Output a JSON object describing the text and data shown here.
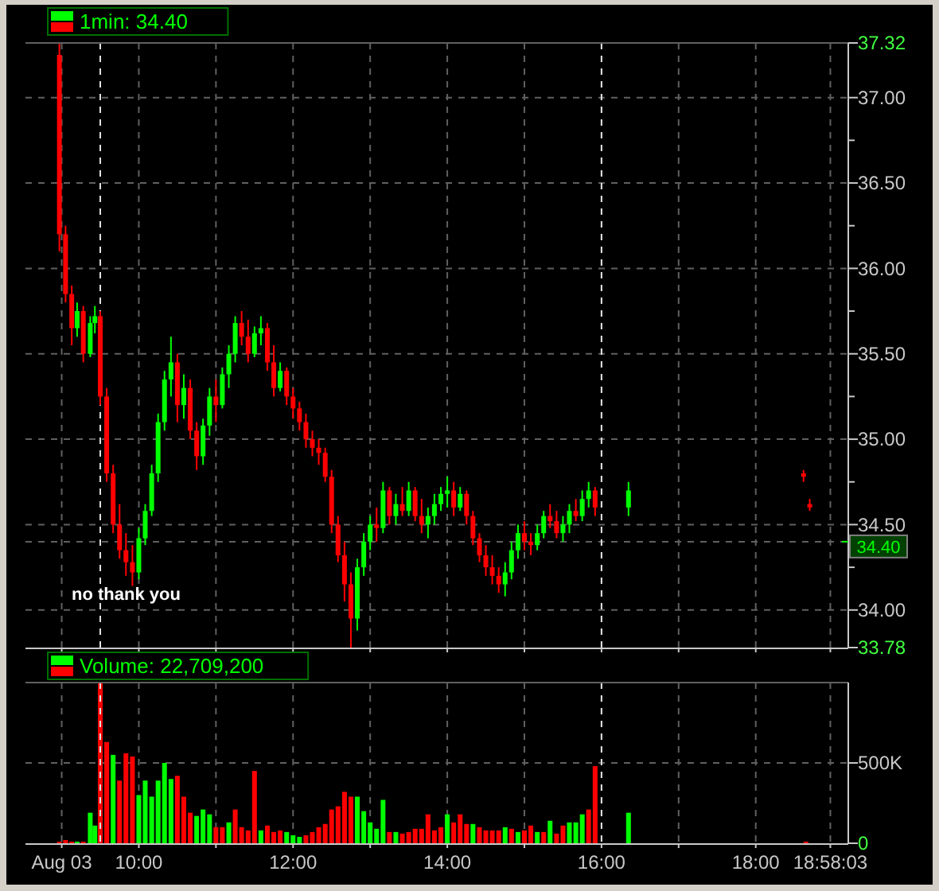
{
  "chart_data": [
    {
      "type": "candlestick",
      "title": "1min: 34.40",
      "annotations": [
        "no thank you"
      ],
      "grid": true,
      "tick_labels": "y",
      "xlim": [
        8.53,
        19.2
      ],
      "xticks": [
        {
          "value": 9,
          "label": null
        },
        {
          "value": 10,
          "label": null
        },
        {
          "value": 11,
          "label": null
        },
        {
          "value": 12,
          "label": null
        },
        {
          "value": 13,
          "label": null
        },
        {
          "value": 14,
          "label": null
        },
        {
          "value": 15,
          "label": null
        },
        {
          "value": 16,
          "label": null
        },
        {
          "value": 17,
          "label": null
        },
        {
          "value": 18,
          "label": null
        },
        {
          "value": 18.9675,
          "label": null
        }
      ],
      "ylim": [
        33.78,
        37.32
      ],
      "yticks": [
        33.78,
        {
          "value": 34,
          "label": "34.00"
        },
        {
          "value": 34.25,
          "label": null
        },
        {
          "value": 34.4,
          "label": "34.40"
        },
        {
          "value": 34.5,
          "label": "34.50"
        },
        {
          "value": 34.75,
          "label": null
        },
        {
          "value": 35,
          "label": "35.00"
        },
        {
          "value": 35.25,
          "label": null
        },
        {
          "value": 35.5,
          "label": "35.50"
        },
        {
          "value": 35.75,
          "label": null
        },
        {
          "value": 36,
          "label": "36.00"
        },
        {
          "value": 36.25,
          "label": null
        },
        {
          "value": 36.5,
          "label": "36.50"
        },
        {
          "value": 36.75,
          "label": null
        },
        {
          "value": 37,
          "label": "37.00"
        },
        37.32
      ],
      "ref_lines": [
        {
          "axis": "x",
          "value": 9.5,
          "line_style": "dashed",
          "color": "#e0e0e0"
        },
        {
          "axis": "x",
          "value": 16,
          "line_style": "dashed",
          "color": "#e0e0e0"
        }
      ],
      "x": [
        8.97,
        9.05,
        9.13,
        9.2,
        9.28,
        9.37,
        9.43,
        9.5,
        9.583,
        9.667,
        9.75,
        9.833,
        9.917,
        10,
        10.083,
        10.167,
        10.25,
        10.333,
        10.417,
        10.5,
        10.583,
        10.667,
        10.75,
        10.833,
        10.917,
        11,
        11.083,
        11.167,
        11.25,
        11.333,
        11.417,
        11.5,
        11.583,
        11.667,
        11.75,
        11.833,
        11.917,
        12,
        12.083,
        12.167,
        12.25,
        12.333,
        12.417,
        12.5,
        12.583,
        12.667,
        12.75,
        12.833,
        12.917,
        13,
        13.083,
        13.167,
        13.25,
        13.333,
        13.417,
        13.5,
        13.583,
        13.667,
        13.75,
        13.833,
        13.917,
        14,
        14.083,
        14.167,
        14.25,
        14.333,
        14.417,
        14.5,
        14.583,
        14.667,
        14.75,
        14.833,
        14.917,
        15,
        15.083,
        15.167,
        15.25,
        15.333,
        15.417,
        15.5,
        15.583,
        15.667,
        15.75,
        15.833,
        15.917,
        16.35,
        18.62,
        18.7
      ],
      "ohlc": [
        [
          37.25,
          37.32,
          36.1,
          36.2
        ],
        [
          36.2,
          36.25,
          35.8,
          35.85
        ],
        [
          35.85,
          35.9,
          35.55,
          35.65
        ],
        [
          35.65,
          35.8,
          35.6,
          35.75
        ],
        [
          35.75,
          35.78,
          35.45,
          35.5
        ],
        [
          35.5,
          35.72,
          35.48,
          35.68
        ],
        [
          35.68,
          35.78,
          35.62,
          35.72
        ],
        [
          35.72,
          35.75,
          35.2,
          35.25
        ],
        [
          35.25,
          35.3,
          34.75,
          34.8
        ],
        [
          34.8,
          34.85,
          34.45,
          34.5
        ],
        [
          34.5,
          34.62,
          34.3,
          34.35
        ],
        [
          34.35,
          34.45,
          34.2,
          34.28
        ],
        [
          34.28,
          34.38,
          34.14,
          34.22
        ],
        [
          34.22,
          34.48,
          34.18,
          34.42
        ],
        [
          34.42,
          34.62,
          34.38,
          34.58
        ],
        [
          34.58,
          34.85,
          34.55,
          34.8
        ],
        [
          34.8,
          35.15,
          34.75,
          35.1
        ],
        [
          35.1,
          35.4,
          35.05,
          35.35
        ],
        [
          35.35,
          35.6,
          35.25,
          35.45
        ],
        [
          35.45,
          35.5,
          35.1,
          35.2
        ],
        [
          35.2,
          35.38,
          35.12,
          35.3
        ],
        [
          35.3,
          35.35,
          35,
          35.05
        ],
        [
          35.05,
          35.1,
          34.82,
          34.9
        ],
        [
          34.9,
          35.12,
          34.85,
          35.08
        ],
        [
          35.08,
          35.3,
          35.02,
          35.25
        ],
        [
          35.25,
          35.35,
          35.1,
          35.2
        ],
        [
          35.2,
          35.42,
          35.18,
          35.38
        ],
        [
          35.38,
          35.55,
          35.3,
          35.5
        ],
        [
          35.5,
          35.72,
          35.45,
          35.68
        ],
        [
          35.68,
          35.75,
          35.55,
          35.6
        ],
        [
          35.6,
          35.7,
          35.45,
          35.5
        ],
        [
          35.5,
          35.66,
          35.48,
          35.62
        ],
        [
          35.62,
          35.72,
          35.55,
          35.65
        ],
        [
          35.65,
          35.68,
          35.4,
          35.45
        ],
        [
          35.45,
          35.55,
          35.25,
          35.3
        ],
        [
          35.3,
          35.45,
          35.28,
          35.4
        ],
        [
          35.4,
          35.42,
          35.2,
          35.25
        ],
        [
          35.25,
          35.3,
          35.12,
          35.18
        ],
        [
          35.18,
          35.22,
          35.05,
          35.1
        ],
        [
          35.1,
          35.15,
          34.95,
          35
        ],
        [
          35,
          35.05,
          34.9,
          34.95
        ],
        [
          34.95,
          35,
          34.85,
          34.92
        ],
        [
          34.92,
          34.95,
          34.75,
          34.78
        ],
        [
          34.78,
          34.82,
          34.45,
          34.5
        ],
        [
          34.5,
          34.55,
          34.28,
          34.32
        ],
        [
          34.32,
          34.4,
          34.05,
          34.15
        ],
        [
          34.15,
          34.22,
          33.78,
          33.95
        ],
        [
          33.95,
          34.3,
          33.88,
          34.25
        ],
        [
          34.25,
          34.45,
          34.2,
          34.4
        ],
        [
          34.4,
          34.55,
          34.35,
          34.5
        ],
        [
          34.5,
          34.6,
          34.4,
          34.48
        ],
        [
          34.48,
          34.75,
          34.45,
          34.7
        ],
        [
          34.7,
          34.72,
          34.5,
          34.55
        ],
        [
          34.55,
          34.68,
          34.5,
          34.62
        ],
        [
          34.62,
          34.72,
          34.55,
          34.58
        ],
        [
          34.58,
          34.75,
          34.55,
          34.7
        ],
        [
          34.7,
          34.72,
          34.52,
          34.55
        ],
        [
          34.55,
          34.65,
          34.45,
          34.5
        ],
        [
          34.5,
          34.6,
          34.42,
          34.55
        ],
        [
          34.55,
          34.68,
          34.5,
          34.62
        ],
        [
          34.62,
          34.72,
          34.58,
          34.68
        ],
        [
          34.68,
          34.78,
          34.6,
          34.7
        ],
        [
          34.7,
          34.75,
          34.55,
          34.6
        ],
        [
          34.6,
          34.72,
          34.58,
          34.68
        ],
        [
          34.68,
          34.7,
          34.5,
          34.55
        ],
        [
          34.55,
          34.58,
          34.38,
          34.42
        ],
        [
          34.42,
          34.45,
          34.28,
          34.32
        ],
        [
          34.32,
          34.38,
          34.2,
          34.25
        ],
        [
          34.25,
          34.32,
          34.15,
          34.2
        ],
        [
          34.2,
          34.25,
          34.1,
          34.15
        ],
        [
          34.15,
          34.28,
          34.08,
          34.22
        ],
        [
          34.22,
          34.4,
          34.18,
          34.35
        ],
        [
          34.35,
          34.5,
          34.3,
          34.45
        ],
        [
          34.45,
          34.52,
          34.35,
          34.4
        ],
        [
          34.4,
          34.45,
          34.32,
          34.38
        ],
        [
          34.38,
          34.5,
          34.35,
          34.45
        ],
        [
          34.45,
          34.58,
          34.42,
          34.55
        ],
        [
          34.55,
          34.62,
          34.48,
          34.52
        ],
        [
          34.52,
          34.58,
          34.42,
          34.45
        ],
        [
          34.45,
          34.55,
          34.4,
          34.5
        ],
        [
          34.5,
          34.62,
          34.45,
          34.58
        ],
        [
          34.58,
          34.65,
          34.52,
          34.55
        ],
        [
          34.55,
          34.7,
          34.52,
          34.65
        ],
        [
          34.65,
          34.75,
          34.6,
          34.7
        ],
        [
          34.7,
          34.72,
          34.55,
          34.6
        ],
        [
          34.6,
          34.75,
          34.55,
          34.7
        ],
        [
          34.8,
          34.82,
          34.75,
          34.78
        ],
        [
          34.62,
          34.65,
          34.58,
          34.6
        ]
      ]
    },
    {
      "type": "bar",
      "title": "Volume: 22,709,200",
      "grid": true,
      "xlim": [
        8.53,
        19.2
      ],
      "xticks": [
        {
          "value": 9,
          "label": "Aug 03"
        },
        {
          "value": 10,
          "label": "10:00"
        },
        {
          "value": 11,
          "label": null
        },
        {
          "value": 12,
          "label": "12:00"
        },
        {
          "value": 13,
          "label": null
        },
        {
          "value": 14,
          "label": "14:00"
        },
        {
          "value": 15,
          "label": null
        },
        {
          "value": 16,
          "label": "16:00"
        },
        {
          "value": 17,
          "label": null
        },
        {
          "value": 18,
          "label": "18:00"
        },
        {
          "value": 18.9675,
          "label": "18:58:03"
        }
      ],
      "ylim": [
        0,
        1000000
      ],
      "yticks": [
        0,
        {
          "value": 500000,
          "label": "500K"
        }
      ],
      "ref_lines": [
        {
          "axis": "x",
          "value": 9.5,
          "line_style": "dashed",
          "color": "#e0e0e0"
        },
        {
          "axis": "x",
          "value": 16,
          "line_style": "dashed",
          "color": "#e0e0e0"
        }
      ],
      "x": [
        8.97,
        9.05,
        9.13,
        9.2,
        9.28,
        9.37,
        9.43,
        9.5,
        9.583,
        9.667,
        9.75,
        9.833,
        9.917,
        10,
        10.083,
        10.167,
        10.25,
        10.333,
        10.417,
        10.5,
        10.583,
        10.667,
        10.75,
        10.833,
        10.917,
        11,
        11.083,
        11.167,
        11.25,
        11.333,
        11.417,
        11.5,
        11.583,
        11.667,
        11.75,
        11.833,
        11.917,
        12,
        12.083,
        12.167,
        12.25,
        12.333,
        12.417,
        12.5,
        12.583,
        12.667,
        12.75,
        12.833,
        12.917,
        13,
        13.083,
        13.167,
        13.25,
        13.333,
        13.417,
        13.5,
        13.583,
        13.667,
        13.75,
        13.833,
        13.917,
        14,
        14.083,
        14.167,
        14.25,
        14.333,
        14.417,
        14.5,
        14.583,
        14.667,
        14.75,
        14.833,
        14.917,
        15,
        15.083,
        15.167,
        15.25,
        15.333,
        15.417,
        15.5,
        15.583,
        15.667,
        15.75,
        15.833,
        15.917,
        16.35,
        18.65
      ],
      "values": [
        10000,
        20000,
        10000,
        10000,
        10000,
        190000,
        110000,
        1000000,
        630000,
        550000,
        390000,
        560000,
        540000,
        300000,
        390000,
        290000,
        390000,
        500000,
        400000,
        420000,
        290000,
        190000,
        170000,
        210000,
        180000,
        100000,
        100000,
        130000,
        210000,
        100000,
        80000,
        450000,
        80000,
        110000,
        70000,
        80000,
        70000,
        50000,
        40000,
        50000,
        70000,
        100000,
        120000,
        210000,
        230000,
        320000,
        290000,
        290000,
        200000,
        130000,
        90000,
        270000,
        70000,
        70000,
        60000,
        70000,
        90000,
        90000,
        180000,
        80000,
        100000,
        180000,
        130000,
        180000,
        120000,
        120000,
        100000,
        80000,
        80000,
        80000,
        100000,
        90000,
        70000,
        80000,
        110000,
        70000,
        70000,
        140000,
        60000,
        110000,
        130000,
        130000,
        180000,
        210000,
        480000,
        190000,
        10000
      ],
      "colors": [
        "#ff0000",
        "#ff0000",
        "#ff0000",
        "#00ff00",
        "#ff0000",
        "#00ff00",
        "#00ff00",
        "#ff0000",
        "#ff0000",
        "#00ff00",
        "#ff0000",
        "#ff0000",
        "#ff0000",
        "#00ff00",
        "#00ff00",
        "#00ff00",
        "#00ff00",
        "#00ff00",
        "#00ff00",
        "#ff0000",
        "#ff0000",
        "#ff0000",
        "#00ff00",
        "#00ff00",
        "#00ff00",
        "#ff0000",
        "#ff0000",
        "#00ff00",
        "#ff0000",
        "#ff0000",
        "#ff0000",
        "#ff0000",
        "#00ff00",
        "#ff0000",
        "#ff0000",
        "#ff0000",
        "#00ff00",
        "#00ff00",
        "#00ff00",
        "#ff0000",
        "#ff0000",
        "#ff0000",
        "#ff0000",
        "#ff0000",
        "#ff0000",
        "#ff0000",
        "#ff0000",
        "#00ff00",
        "#00ff00",
        "#00ff00",
        "#00ff00",
        "#00ff00",
        "#ff0000",
        "#00ff00",
        "#ff0000",
        "#ff0000",
        "#ff0000",
        "#ff0000",
        "#ff0000",
        "#ff0000",
        "#ff0000",
        "#00ff00",
        "#ff0000",
        "#ff0000",
        "#ff0000",
        "#00ff00",
        "#ff0000",
        "#ff0000",
        "#ff0000",
        "#ff0000",
        "#00ff00",
        "#ff0000",
        "#00ff00",
        "#ff0000",
        "#ff0000",
        "#00ff00",
        "#ff0000",
        "#00ff00",
        "#ff0000",
        "#ff0000",
        "#00ff00",
        "#00ff00",
        "#00ff00",
        "#ff0000",
        "#ff0000",
        "#00ff00",
        "#ff0000"
      ]
    }
  ]
}
